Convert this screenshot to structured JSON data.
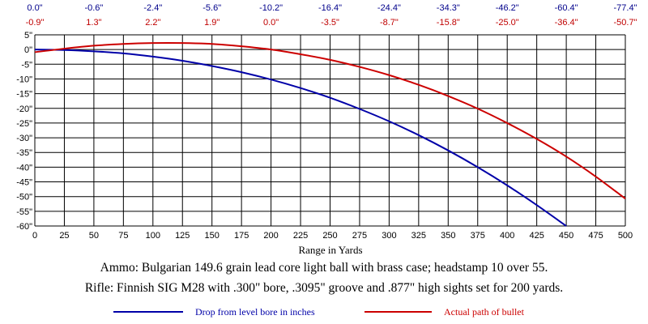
{
  "chart_data": {
    "type": "line",
    "xlabel": "Range in Yards",
    "x": [
      0,
      25,
      50,
      75,
      100,
      125,
      150,
      175,
      200,
      225,
      250,
      275,
      300,
      325,
      350,
      375,
      400,
      425,
      450,
      475,
      500
    ],
    "xticks": [
      "0",
      "25",
      "50",
      "75",
      "100",
      "125",
      "150",
      "175",
      "200",
      "225",
      "250",
      "275",
      "300",
      "325",
      "350",
      "375",
      "400",
      "425",
      "450",
      "475",
      "500"
    ],
    "yticks": [
      "5\"",
      "0\"",
      "-5\"",
      "-10\"",
      "-15\"",
      "-20\"",
      "-25\"",
      "-30\"",
      "-35\"",
      "-40\"",
      "-45\"",
      "-50\"",
      "-55\"",
      "-60\""
    ],
    "ylim": [
      -60,
      5
    ],
    "xlim": [
      0,
      500
    ],
    "grid": true,
    "top_labels_x": [
      0,
      50,
      100,
      150,
      200,
      250,
      300,
      350,
      400,
      450,
      500
    ],
    "top_labels_drop": [
      "0.0\"",
      "-0.6\"",
      "-2.4\"",
      "-5.6\"",
      "-10.2\"",
      "-16.4\"",
      "-24.4\"",
      "-34.3\"",
      "-46.2\"",
      "-60.4\"",
      "-77.4\""
    ],
    "top_labels_path": [
      "-0.9\"",
      "1.3\"",
      "2.2\"",
      "1.9\"",
      "0.0\"",
      "-3.5\"",
      "-8.7\"",
      "-15.8\"",
      "-25.0\"",
      "-36.4\"",
      "-50.7\""
    ],
    "series": [
      {
        "name": "Drop from level bore in inches",
        "color": "#0000a8",
        "x": [
          0,
          25,
          50,
          75,
          100,
          125,
          150,
          175,
          200,
          225,
          250,
          275,
          300,
          325,
          350,
          375,
          400,
          425,
          450
        ],
        "values": [
          0.0,
          -0.15,
          -0.6,
          -1.3,
          -2.4,
          -3.8,
          -5.6,
          -7.7,
          -10.2,
          -13.1,
          -16.4,
          -20.2,
          -24.4,
          -29.1,
          -34.3,
          -40.0,
          -46.2,
          -52.9,
          -60.0
        ]
      },
      {
        "name": "Actual path of bullet",
        "color": "#cc0000",
        "x": [
          0,
          25,
          50,
          75,
          100,
          125,
          150,
          175,
          200,
          225,
          250,
          275,
          300,
          325,
          350,
          375,
          400,
          425,
          450,
          475,
          500
        ],
        "values": [
          -0.9,
          0.3,
          1.3,
          1.9,
          2.2,
          2.2,
          1.9,
          1.1,
          0.0,
          -1.6,
          -3.5,
          -5.9,
          -8.7,
          -12.0,
          -15.8,
          -20.1,
          -25.0,
          -30.4,
          -36.4,
          -43.2,
          -50.7
        ]
      }
    ]
  },
  "caption": {
    "line1": "Ammo:  Bulgarian 149.6 grain lead core light ball with brass case; headstamp 10 over 55.",
    "line2": "Rifle:  Finnish SIG M28 with .300\" bore, .3095\" groove and .877\" high sights set for 200 yards."
  },
  "legend": {
    "drop_label": "Drop from level bore in inches",
    "path_label": "Actual path of bullet",
    "drop_color": "#0000a8",
    "path_color": "#cc0000"
  }
}
